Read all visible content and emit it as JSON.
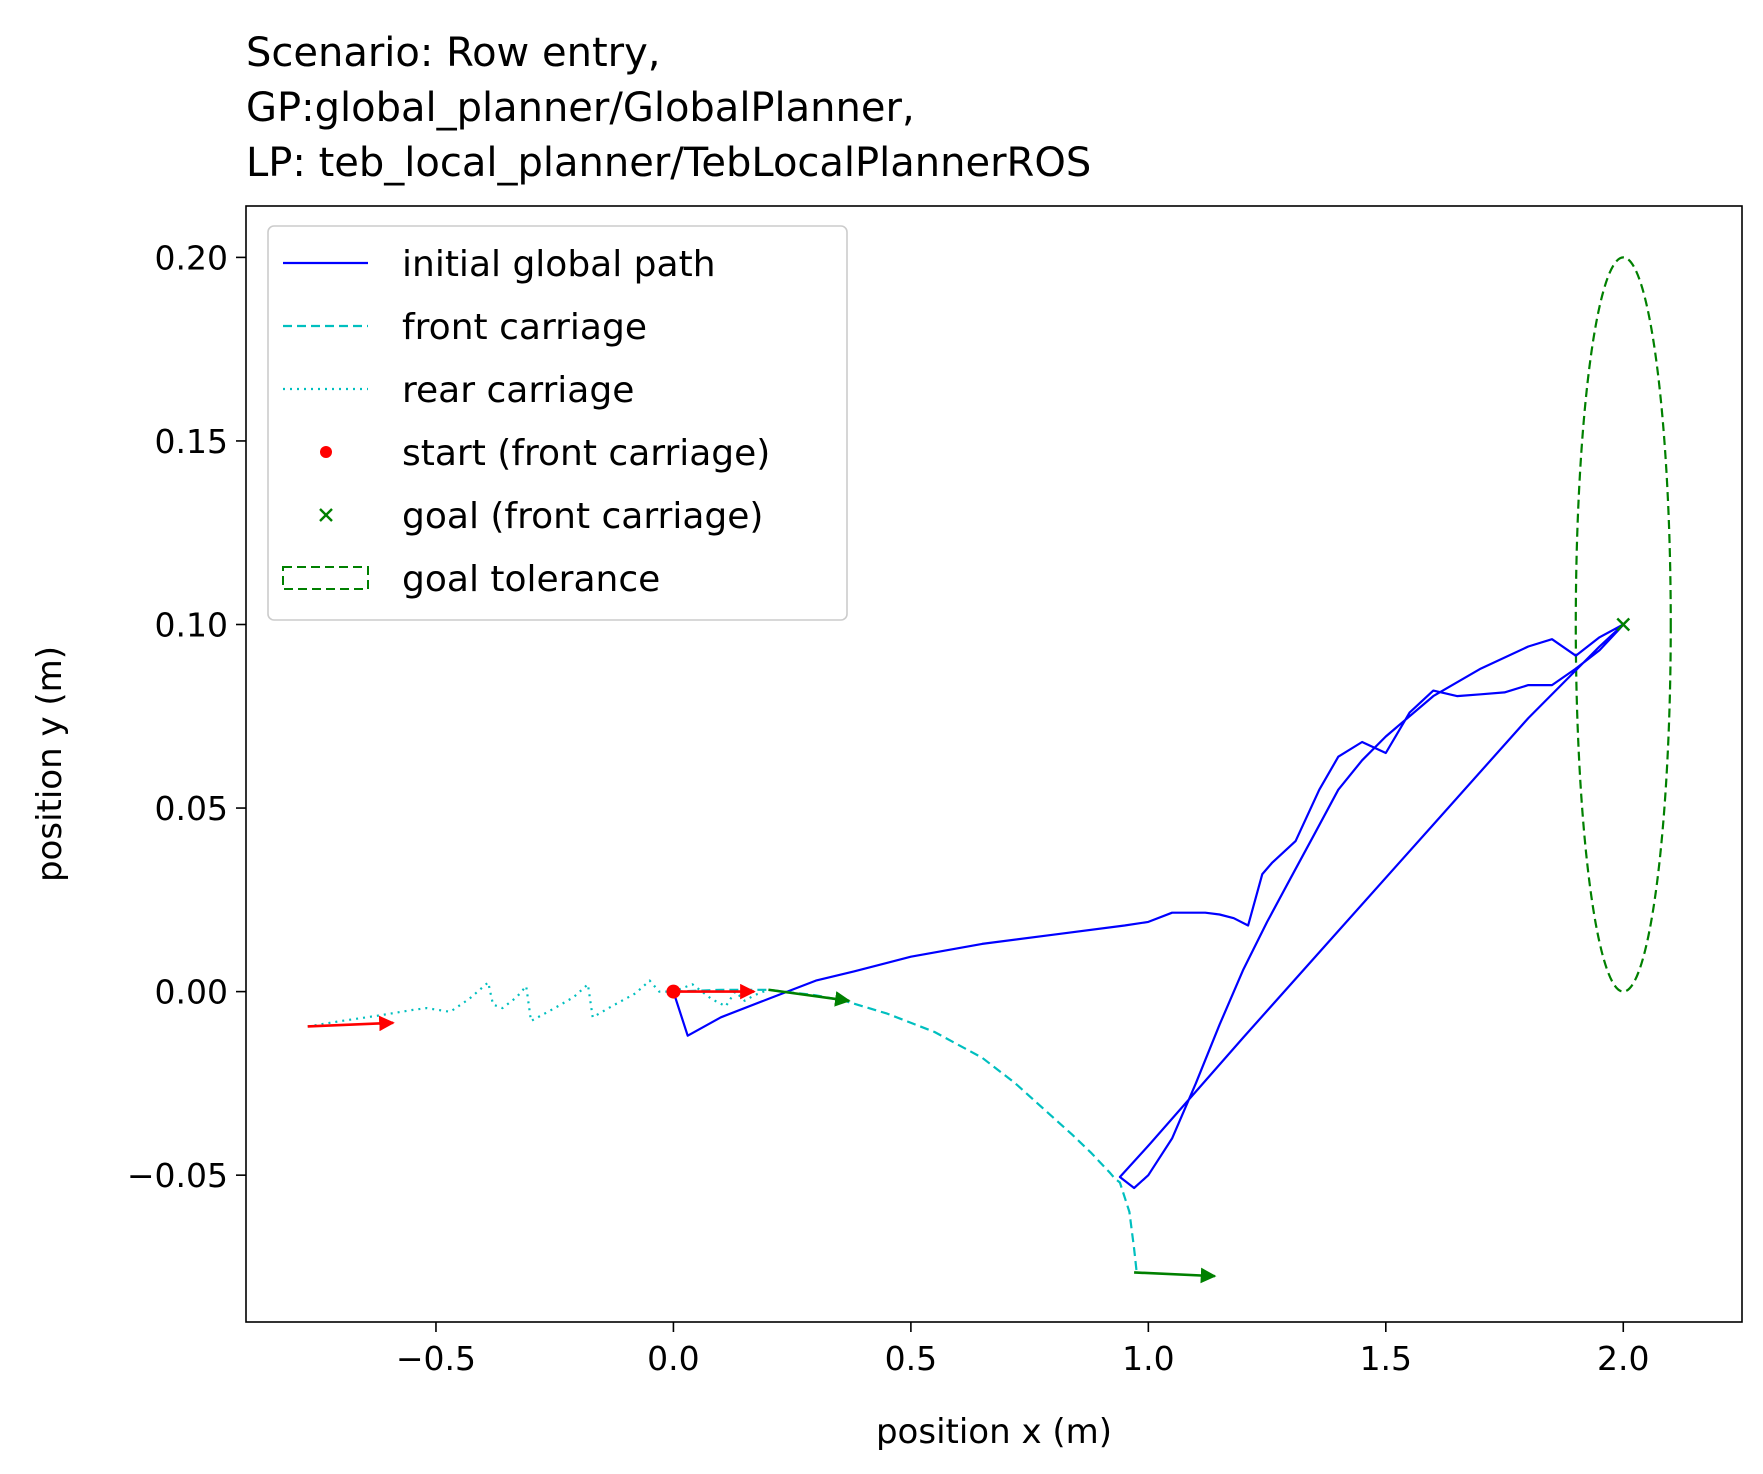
{
  "chart_data": {
    "type": "line",
    "title_lines": [
      "Scenario: Row entry,",
      "GP:global_planner/GlobalPlanner,",
      "LP: teb_local_planner/TebLocalPlannerROS"
    ],
    "xlabel": "position x (m)",
    "ylabel": "position y (m)",
    "xlim": [
      -0.9,
      2.25
    ],
    "ylim": [
      -0.09,
      0.214
    ],
    "xticks": [
      -0.5,
      0.0,
      0.5,
      1.0,
      1.5,
      2.0
    ],
    "xtick_labels": [
      "−0.5",
      "0.0",
      "0.5",
      "1.0",
      "1.5",
      "2.0"
    ],
    "yticks": [
      -0.05,
      0.0,
      0.05,
      0.1,
      0.15,
      0.2
    ],
    "ytick_labels": [
      "−0.05",
      "0.00",
      "0.05",
      "0.10",
      "0.15",
      "0.20"
    ],
    "grid": false,
    "legend_position": "top-left",
    "colors": {
      "global_path": "#0000ff",
      "front_carriage": "#00bfbf",
      "rear_carriage": "#00bfbf",
      "start": "#ff0000",
      "goal": "#008000",
      "goal_tolerance": "#008000",
      "arrow_start": "#ff0000",
      "arrow_goal": "#008000"
    },
    "series": [
      {
        "name": "initial global path",
        "style": "solid",
        "color": "#0000ff",
        "points": [
          [
            0.0,
            0.0
          ],
          [
            0.03,
            -0.012
          ],
          [
            0.1,
            -0.007
          ],
          [
            0.2,
            -0.002
          ],
          [
            0.3,
            0.003
          ],
          [
            0.38,
            0.0055
          ],
          [
            0.5,
            0.0095
          ],
          [
            0.65,
            0.013
          ],
          [
            0.8,
            0.0155
          ],
          [
            0.95,
            0.018
          ],
          [
            1.0,
            0.019
          ],
          [
            1.05,
            0.0215
          ],
          [
            1.08,
            0.0215
          ],
          [
            1.12,
            0.0215
          ],
          [
            1.15,
            0.021
          ],
          [
            1.18,
            0.02
          ],
          [
            1.21,
            0.018
          ],
          [
            1.24,
            0.032
          ],
          [
            1.26,
            0.035
          ],
          [
            1.31,
            0.041
          ],
          [
            1.36,
            0.055
          ],
          [
            1.4,
            0.064
          ],
          [
            1.45,
            0.068
          ],
          [
            1.5,
            0.065
          ],
          [
            1.55,
            0.076
          ],
          [
            1.6,
            0.082
          ],
          [
            1.65,
            0.0805
          ],
          [
            1.7,
            0.081
          ],
          [
            1.75,
            0.0815
          ],
          [
            1.8,
            0.0835
          ],
          [
            1.85,
            0.0835
          ],
          [
            1.9,
            0.088
          ],
          [
            1.95,
            0.093
          ],
          [
            1.99,
            0.0985
          ],
          [
            2.0,
            0.1
          ],
          [
            1.95,
            0.0965
          ],
          [
            1.9,
            0.0915
          ],
          [
            1.85,
            0.096
          ],
          [
            1.8,
            0.094
          ],
          [
            1.7,
            0.088
          ],
          [
            1.6,
            0.0805
          ],
          [
            1.5,
            0.0695
          ],
          [
            1.45,
            0.063
          ],
          [
            1.4,
            0.055
          ],
          [
            1.35,
            0.043
          ],
          [
            1.3,
            0.031
          ],
          [
            1.25,
            0.019
          ],
          [
            1.2,
            0.006
          ],
          [
            1.15,
            -0.009
          ],
          [
            1.1,
            -0.025
          ],
          [
            1.05,
            -0.04
          ],
          [
            1.0,
            -0.05
          ],
          [
            0.97,
            -0.0535
          ],
          [
            0.94,
            -0.0505
          ],
          [
            1.0,
            -0.042
          ],
          [
            1.2,
            -0.0125
          ],
          [
            1.4,
            0.0165
          ],
          [
            1.6,
            0.0455
          ],
          [
            1.8,
            0.0745
          ],
          [
            1.95,
            0.094
          ],
          [
            2.0,
            0.1
          ]
        ]
      },
      {
        "name": "front carriage",
        "style": "dashed",
        "color": "#00bfbf",
        "points": [
          [
            0.0,
            0.0
          ],
          [
            0.1,
            0.0005
          ],
          [
            0.2,
            0.0005
          ],
          [
            0.3,
            -0.001
          ],
          [
            0.36,
            -0.0025
          ],
          [
            0.45,
            -0.006
          ],
          [
            0.55,
            -0.011
          ],
          [
            0.65,
            -0.018
          ],
          [
            0.72,
            -0.025
          ],
          [
            0.78,
            -0.032
          ],
          [
            0.84,
            -0.039
          ],
          [
            0.88,
            -0.044
          ],
          [
            0.92,
            -0.0495
          ],
          [
            0.93,
            -0.051
          ],
          [
            0.94,
            -0.052
          ],
          [
            0.96,
            -0.06
          ],
          [
            0.97,
            -0.07
          ],
          [
            0.975,
            -0.076
          ]
        ]
      },
      {
        "name": "rear carriage",
        "style": "dotted",
        "color": "#00bfbf",
        "points": [
          [
            -0.77,
            -0.0095
          ],
          [
            -0.7,
            -0.008
          ],
          [
            -0.62,
            -0.0065
          ],
          [
            -0.55,
            -0.005
          ],
          [
            -0.52,
            -0.0045
          ],
          [
            -0.47,
            -0.0055
          ],
          [
            -0.43,
            -0.002
          ],
          [
            -0.39,
            0.0025
          ],
          [
            -0.38,
            -0.0035
          ],
          [
            -0.36,
            -0.0045
          ],
          [
            -0.33,
            -0.0015
          ],
          [
            -0.31,
            0.0015
          ],
          [
            -0.3,
            -0.008
          ],
          [
            -0.25,
            -0.0045
          ],
          [
            -0.21,
            -0.0015
          ],
          [
            -0.18,
            0.002
          ],
          [
            -0.17,
            -0.007
          ],
          [
            -0.13,
            -0.004
          ],
          [
            -0.08,
            -0.0005
          ],
          [
            -0.05,
            0.003
          ],
          [
            -0.03,
            0.0
          ],
          [
            0.0,
            0.0
          ],
          [
            0.04,
            0.002
          ],
          [
            0.08,
            -0.002
          ],
          [
            0.11,
            -0.004
          ],
          [
            0.13,
            0.0
          ],
          [
            0.15,
            -0.0025
          ],
          [
            0.17,
            -0.001
          ],
          [
            0.2,
            0.0005
          ]
        ]
      }
    ],
    "start_point": {
      "name": "start (front carriage)",
      "x": 0.0,
      "y": 0.0
    },
    "goal_point": {
      "name": "goal (front carriage)",
      "x": 2.0,
      "y": 0.1
    },
    "goal_tolerance": {
      "name": "goal tolerance",
      "center": [
        2.0,
        0.1
      ],
      "rx": 0.1,
      "ry": 0.1
    },
    "arrows": [
      {
        "color": "#ff0000",
        "from": [
          -0.77,
          -0.0095
        ],
        "to": [
          -0.59,
          -0.0085
        ]
      },
      {
        "color": "#ff0000",
        "from": [
          0.0,
          0.0
        ],
        "to": [
          0.17,
          0.0
        ]
      },
      {
        "color": "#008000",
        "from": [
          0.2,
          0.0005
        ],
        "to": [
          0.37,
          -0.0025
        ]
      },
      {
        "color": "#008000",
        "from": [
          0.97,
          -0.0765
        ],
        "to": [
          1.14,
          -0.0775
        ]
      }
    ]
  }
}
